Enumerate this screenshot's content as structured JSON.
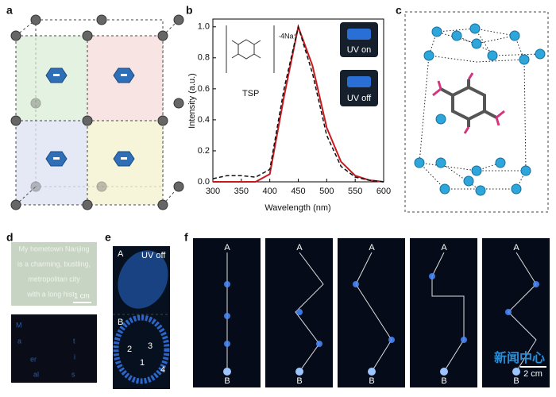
{
  "chart_data": {
    "type": "line",
    "x_label": "Wavelength (nm)",
    "y_label": "Intensity (a.u.)",
    "x": [
      300,
      325,
      350,
      375,
      400,
      425,
      450,
      475,
      500,
      525,
      550,
      575,
      600
    ],
    "series": [
      {
        "color": "#c8191e",
        "style": "solid",
        "values": [
          0,
          0,
          0,
          0,
          0.05,
          0.55,
          1.0,
          0.75,
          0.35,
          0.13,
          0.04,
          0.01,
          0
        ]
      },
      {
        "color": "#111111",
        "style": "dashed",
        "values": [
          0.02,
          0.04,
          0.04,
          0.03,
          0.08,
          0.6,
          1.0,
          0.7,
          0.3,
          0.1,
          0.03,
          0.01,
          0
        ]
      }
    ],
    "xlim": [
      300,
      600
    ],
    "xticks": [
      300,
      350,
      400,
      450,
      500,
      550,
      600
    ],
    "ylim": [
      0,
      1.05
    ],
    "yticks": [
      {
        "value": 0,
        "label": "0.0"
      },
      0.2,
      0.4,
      0.6,
      0.8,
      {
        "value": 1,
        "label": "1.0"
      }
    ],
    "inset_molecule": "TSP",
    "inset_salt": "·4Na⁺",
    "inset_uv_on": "UV on",
    "inset_uv_off": "UV off"
  },
  "panels": {
    "labels": [
      "a",
      "b",
      "c",
      "d",
      "e",
      "f"
    ],
    "d": {
      "lines": [
        "My hometown Nanjing",
        "is a charming, bustling,",
        "metropolitan city",
        "with a long hist"
      ],
      "scale": "1 cm",
      "letters": [
        "M",
        "a",
        "t",
        "i",
        "er",
        "al",
        "s"
      ]
    },
    "e": {
      "top": "A",
      "uv": "UV off",
      "bottom": "B",
      "regions": [
        "1",
        "2",
        "3",
        "4"
      ]
    },
    "f": {
      "start": "A",
      "end": "B",
      "scale": "2 cm"
    },
    "watermark": "新闻中心"
  }
}
